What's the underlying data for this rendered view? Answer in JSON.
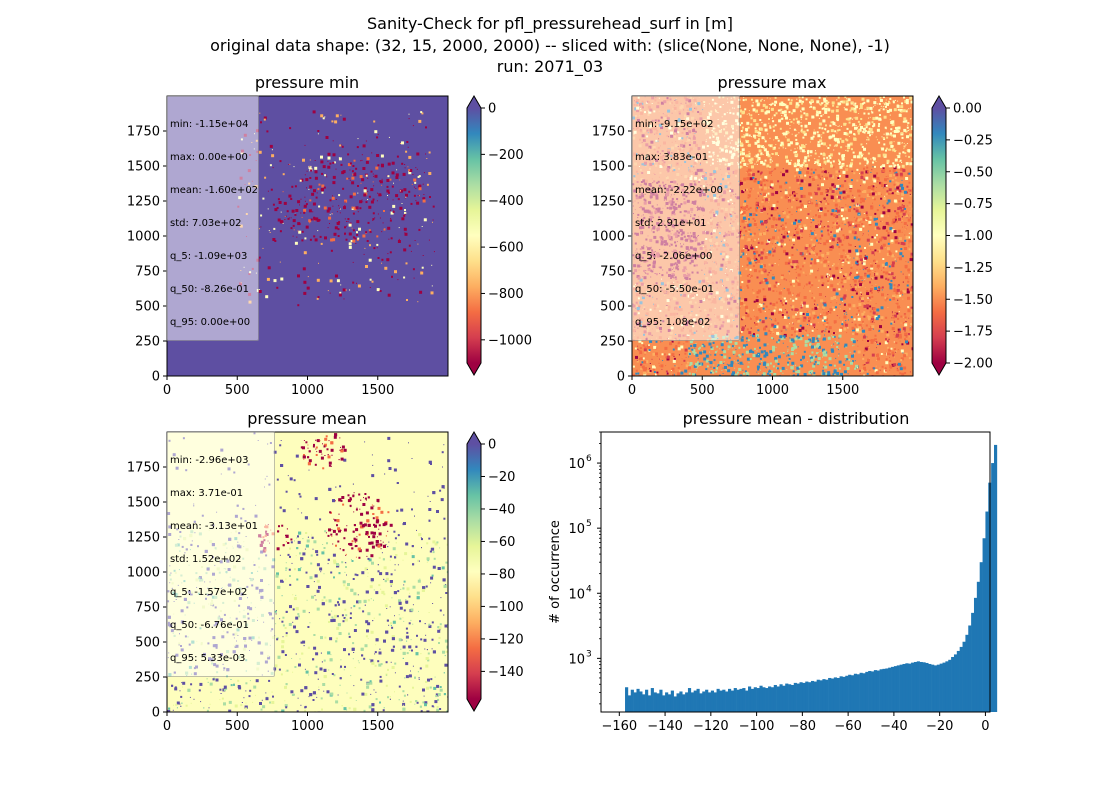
{
  "figure": {
    "title_lines": [
      "Sanity-Check for pfl_pressurehead_surf in [m]",
      "original data shape: (32, 15, 2000, 2000) -- sliced with: (slice(None, None, None), -1)",
      "run: 2071_03"
    ]
  },
  "colors": {
    "spectral": [
      "#9e0142",
      "#d53e4f",
      "#f46d43",
      "#fdae61",
      "#fee08b",
      "#ffffbf",
      "#e6f598",
      "#abdda4",
      "#66c2a5",
      "#3288bd",
      "#5e4fa2"
    ],
    "histogram_bar": "#1f77b4",
    "minmap_background": "#5e4fa2",
    "maxmap_background": "#f98e52",
    "meanmap_background": "#fefebd"
  },
  "chart_data": [
    {
      "type": "heatmap",
      "title": "pressure min",
      "colormap": "Spectral",
      "background_color": "#5e4fa2",
      "xlim": [
        0,
        2000
      ],
      "ylim": [
        0,
        2000
      ],
      "xticks": [
        0,
        500,
        1000,
        1500
      ],
      "yticks": [
        0,
        250,
        500,
        750,
        1000,
        1250,
        1500,
        1750
      ],
      "colorbar": {
        "vmin": -1100,
        "vmax": 0,
        "ticks": [
          0,
          -200,
          -400,
          -600,
          -800,
          -1000
        ],
        "extend": "both"
      },
      "stats": [
        "min: -1.15e+04",
        "max: 0.00e+00",
        "mean: -1.60e+02",
        "std: 7.03e+02",
        "q_5: -1.09e+03",
        "q_50: -8.26e-01",
        "q_95: 0.00e+00"
      ]
    },
    {
      "type": "heatmap",
      "title": "pressure max",
      "colormap": "Spectral",
      "background_color": "#f98e52",
      "xlim": [
        0,
        2000
      ],
      "ylim": [
        0,
        2000
      ],
      "xticks": [
        0,
        500,
        1000,
        1500
      ],
      "yticks": [
        0,
        250,
        500,
        750,
        1000,
        1250,
        1500,
        1750
      ],
      "colorbar": {
        "vmin": -2.0,
        "vmax": 0.0,
        "ticks": [
          0.0,
          -0.25,
          -0.5,
          -0.75,
          -1.0,
          -1.25,
          -1.5,
          -1.75,
          -2.0
        ],
        "tick_labels": [
          "0.00",
          "−0.25",
          "−0.50",
          "−0.75",
          "−1.00",
          "−1.25",
          "−1.50",
          "−1.75",
          "−2.00"
        ],
        "extend": "both"
      },
      "stats": [
        "min: -9.15e+02",
        "max: 3.83e-01",
        "mean: -2.22e+00",
        "std: 2.91e+01",
        "q_5: -2.06e+00",
        "q_50: -5.50e-01",
        "q_95: 1.08e-02"
      ]
    },
    {
      "type": "heatmap",
      "title": "pressure mean",
      "colormap": "Spectral",
      "background_color": "#fefebd",
      "xlim": [
        0,
        2000
      ],
      "ylim": [
        0,
        2000
      ],
      "xticks": [
        0,
        500,
        1000,
        1500
      ],
      "yticks": [
        0,
        250,
        500,
        750,
        1000,
        1250,
        1500,
        1750
      ],
      "colorbar": {
        "vmin": -157,
        "vmax": 0,
        "ticks": [
          0,
          -20,
          -40,
          -60,
          -80,
          -100,
          -120,
          -140
        ],
        "extend": "both"
      },
      "stats": [
        "min: -2.96e+03",
        "max: 3.71e-01",
        "mean: -3.13e+01",
        "std: 1.52e+02",
        "q_5: -1.57e+02",
        "q_50: -6.76e-01",
        "q_95: 5.33e-03"
      ]
    },
    {
      "type": "bar",
      "title": "pressure mean - distribution",
      "ylabel": "# of occurrence",
      "xlabel": "",
      "yscale": "log",
      "xlim": [
        -168,
        2
      ],
      "ylim": [
        150,
        3000000
      ],
      "xticks": [
        -160,
        -140,
        -120,
        -100,
        -80,
        -60,
        -40,
        -20,
        0
      ],
      "yticks": [
        1000,
        10000,
        100000,
        1000000
      ],
      "ytick_labels": [
        [
          "10",
          "3"
        ],
        [
          "10",
          "4"
        ],
        [
          "10",
          "5"
        ],
        [
          "10",
          "6"
        ]
      ],
      "bin_start": -157.5,
      "bin_width": 1.25,
      "values": [
        360,
        270,
        330,
        300,
        340,
        310,
        280,
        330,
        270,
        350,
        300,
        290,
        330,
        270,
        300,
        280,
        320,
        260,
        290,
        310,
        280,
        300,
        350,
        300,
        320,
        340,
        290,
        310,
        330,
        300,
        320,
        300,
        340,
        320,
        330,
        310,
        340,
        320,
        350,
        330,
        340,
        350,
        320,
        370,
        340,
        360,
        350,
        380,
        360,
        350,
        370,
        360,
        390,
        370,
        400,
        380,
        410,
        400,
        390,
        420,
        410,
        430,
        420,
        440,
        430,
        450,
        440,
        470,
        460,
        480,
        470,
        500,
        490,
        510,
        500,
        530,
        520,
        540,
        560,
        550,
        580,
        570,
        600,
        590,
        620,
        640,
        630,
        660,
        650,
        680,
        690,
        700,
        720,
        740,
        760,
        780,
        800,
        820,
        840,
        830,
        860,
        880,
        900,
        880,
        870,
        850,
        820,
        800,
        780,
        800,
        830,
        860,
        900,
        950,
        1050,
        1150,
        1300,
        1500,
        1800,
        2300,
        3200,
        5000,
        8500,
        15000,
        30000,
        70000,
        180000,
        500000,
        1000000,
        1900000
      ]
    }
  ]
}
